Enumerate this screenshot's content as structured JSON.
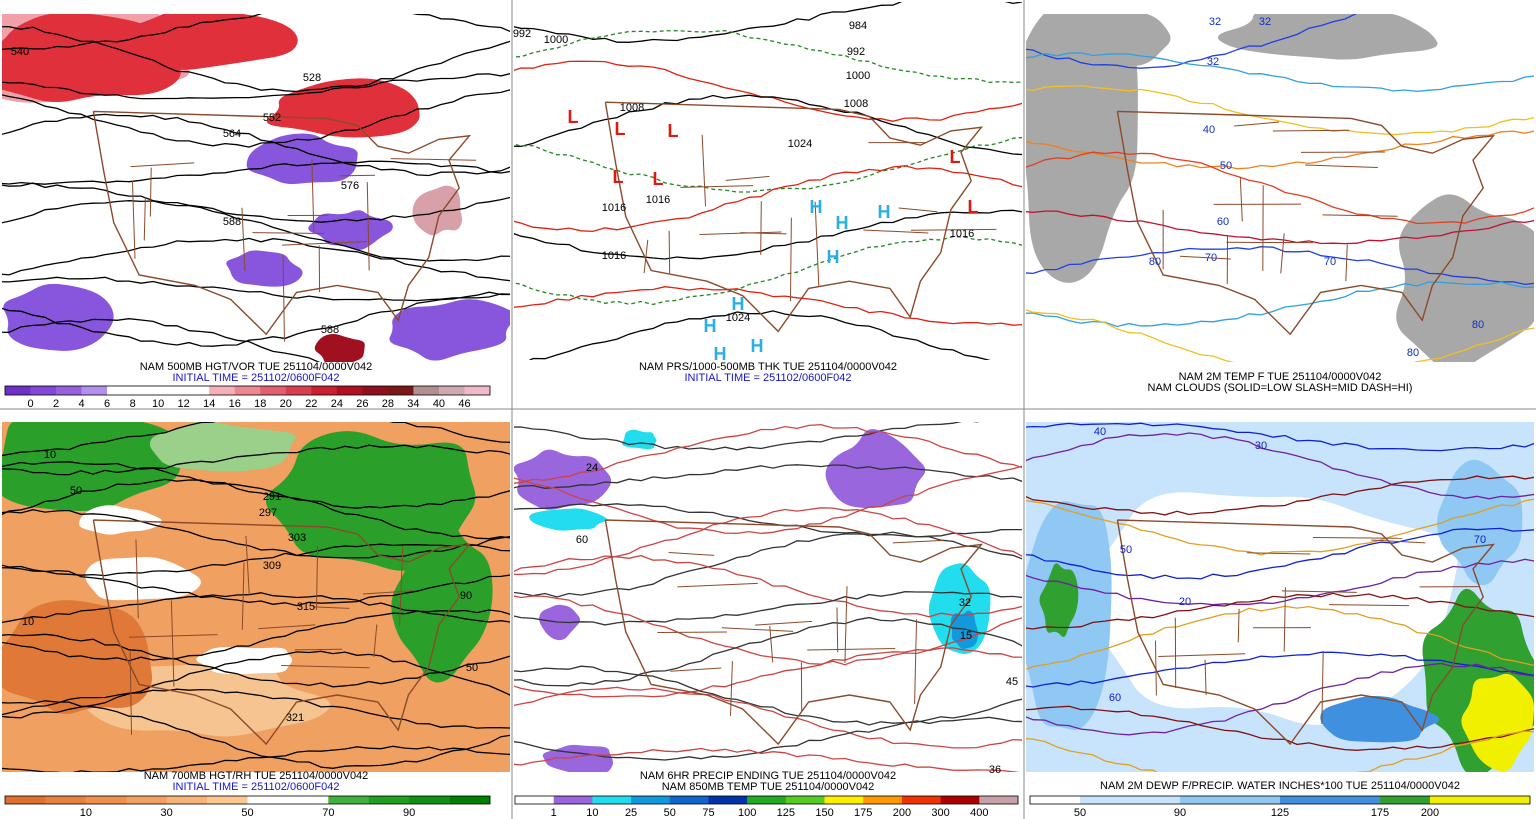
{
  "panels": [
    {
      "caption": [
        "NAM 500MB HGT/VOR TUE 251104/0000V042",
        "INITIAL TIME = 251102/0600F042"
      ],
      "colorbar": {
        "labels": [
          0,
          2,
          4,
          6,
          8,
          10,
          12,
          14,
          16,
          18,
          20,
          22,
          24,
          26,
          28,
          34,
          40,
          46
        ],
        "colors": [
          "#7030c8",
          "#8448d8",
          "#9860e0",
          "#b090ec",
          "#ffffff",
          "#ffffff",
          "#ffffff",
          "#ffffff",
          "#f4b0b8",
          "#ec8890",
          "#e06070",
          "#d84050",
          "#c82030",
          "#b01020",
          "#901020",
          "#7a1818",
          "#b09090",
          "#d0a8b0",
          "#f0b8c8"
        ]
      },
      "map_labels": [
        "540",
        "528",
        "552",
        "564",
        "576",
        "588",
        "588"
      ]
    },
    {
      "caption": [
        "NAM PRS/1000-500MB THK TUE 251104/0000V042",
        "INITIAL TIME = 251102/0600F042"
      ],
      "map_labels": [
        "992",
        "1000",
        "984",
        "992",
        "1000",
        "1008",
        "1008",
        "1024",
        "1016",
        "1016",
        "1016",
        "1024",
        "1016"
      ],
      "lows": [
        "L",
        "L",
        "L",
        "L",
        "L",
        "L",
        "L"
      ],
      "highs": [
        "H",
        "H",
        "H",
        "H",
        "H",
        "H",
        "H",
        "H"
      ]
    },
    {
      "caption": [
        "NAM 2M TEMP F TUE 251104/0000V042",
        "NAM CLOUDS (SOLID=LOW SLASH=MID DASH=HI)"
      ],
      "map_labels": [
        "32",
        "32",
        "32",
        "40",
        "50",
        "60",
        "70",
        "80",
        "70",
        "80",
        "80"
      ]
    },
    {
      "caption": [
        "NAM 700MB HGT/RH TUE 251104/0000V042",
        "INITIAL TIME = 251102/0600F042"
      ],
      "colorbar": {
        "labels": [
          10,
          30,
          50,
          70,
          90
        ],
        "colors": [
          "#e07030",
          "#e88040",
          "#f09050",
          "#f4a060",
          "#f8b478",
          "#fcc890",
          "#ffffff",
          "#ffffff",
          "#40b040",
          "#20a020",
          "#109010",
          "#008000"
        ]
      },
      "map_labels": [
        "10",
        "50",
        "303",
        "309",
        "315",
        "321",
        "291",
        "297",
        "10",
        "90",
        "50"
      ]
    },
    {
      "caption": [
        "NAM 6HR PRECIP ENDING TUE 251104/0000V042",
        "NAM 850MB TEMP TUE 251104/0000V042"
      ],
      "colorbar": {
        "labels": [
          1,
          10,
          25,
          50,
          75,
          100,
          125,
          150,
          175,
          200,
          300,
          400
        ],
        "colors": [
          "#ffffff",
          "#9966dd",
          "#22ddee",
          "#1199dd",
          "#1166cc",
          "#0033aa",
          "#22aa22",
          "#55cc22",
          "#ffee00",
          "#ff9900",
          "#ee3300",
          "#aa0000",
          "#c8a0a8"
        ]
      },
      "map_labels": [
        "24",
        "60",
        "32",
        "36",
        "15",
        "45"
      ]
    },
    {
      "caption": [
        "NAM 2M DEWP F/PRECIP. WATER INCHES*100 TUE 251104/0000V042"
      ],
      "colorbar": {
        "labels": [
          50,
          90,
          125,
          175,
          200
        ],
        "colors": [
          "#ffffff",
          "#c8e4fc",
          "#c8e4fc",
          "#90c8f4",
          "#90c8f4",
          "#4090e0",
          "#4090e0",
          "#30a030",
          "#f0f000",
          "#f0f000"
        ]
      },
      "map_labels": [
        "30",
        "40",
        "50",
        "60",
        "70",
        "20"
      ]
    }
  ]
}
